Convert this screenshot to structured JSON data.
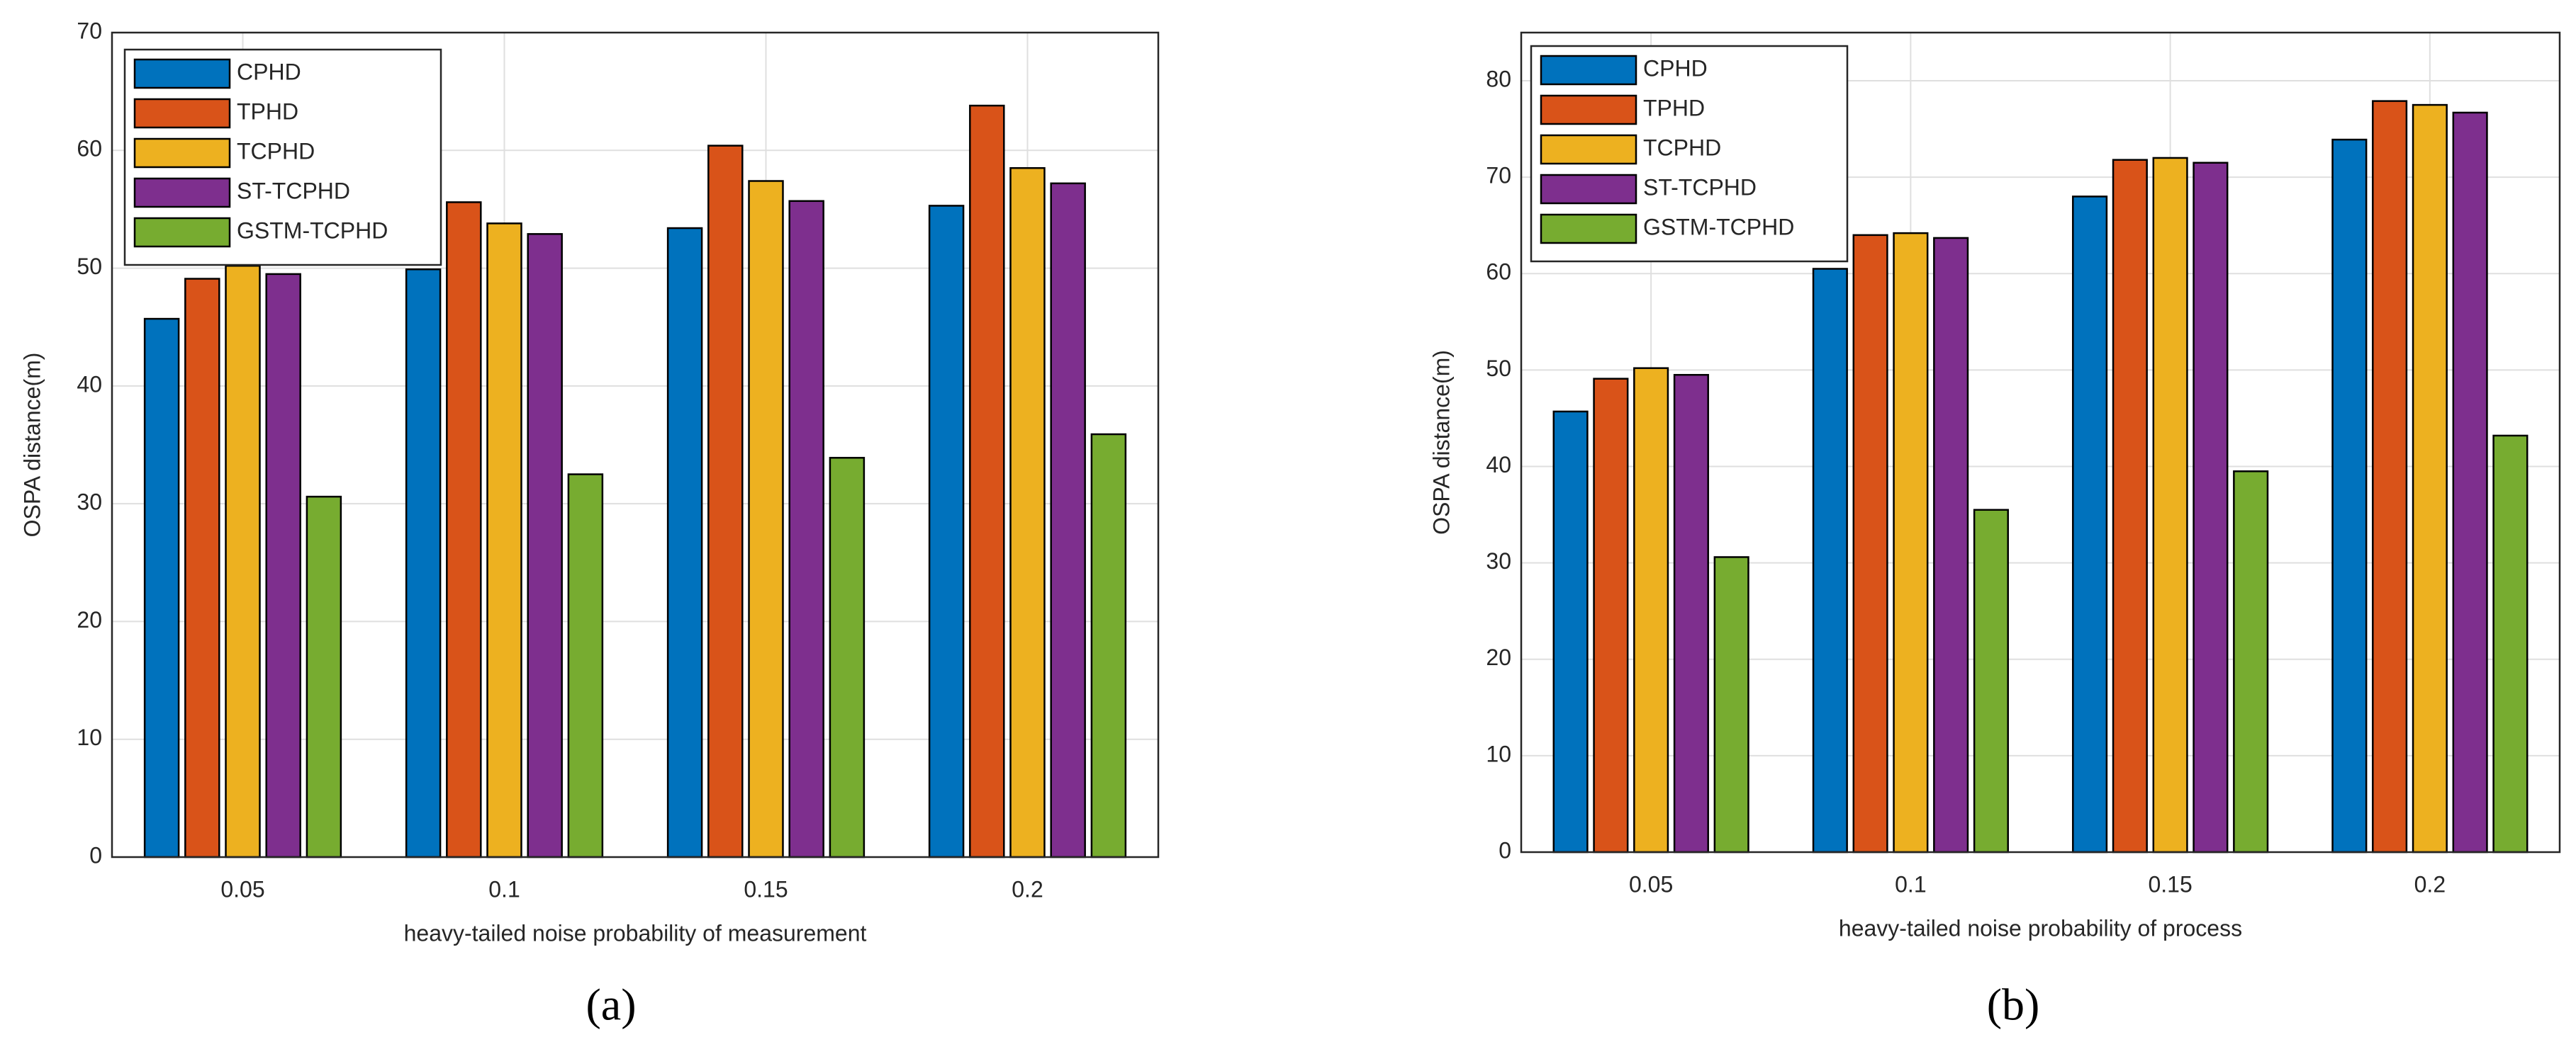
{
  "chart_data": [
    {
      "type": "bar",
      "caption": "(a)",
      "x_label": "heavy-tailed noise probability of measurement",
      "y_label": "OSPA distance(m)",
      "categories": [
        "0.05",
        "0.1",
        "0.15",
        "0.2"
      ],
      "series": [
        {
          "name": "CPHD",
          "color": "#0072bd",
          "values": [
            45.7,
            49.9,
            53.4,
            55.3
          ]
        },
        {
          "name": "TPHD",
          "color": "#d95319",
          "values": [
            49.1,
            55.6,
            60.4,
            63.8
          ]
        },
        {
          "name": "TCPHD",
          "color": "#edb120",
          "values": [
            50.2,
            53.8,
            57.4,
            58.5
          ]
        },
        {
          "name": "ST-TCPHD",
          "color": "#7e2f8e",
          "values": [
            49.5,
            52.9,
            55.7,
            57.2
          ]
        },
        {
          "name": "GSTM-TCPHD",
          "color": "#77ac30",
          "values": [
            30.6,
            32.5,
            33.9,
            35.9
          ]
        }
      ],
      "ylim": [
        0,
        70
      ],
      "yticks": [
        0,
        10,
        20,
        30,
        40,
        50,
        60,
        70
      ],
      "grid": true,
      "legend": "upper-left"
    },
    {
      "type": "bar",
      "caption": "(b)",
      "x_label": "heavy-tailed noise probability of process",
      "y_label": "OSPA distance(m)",
      "categories": [
        "0.05",
        "0.1",
        "0.15",
        "0.2"
      ],
      "series": [
        {
          "name": "CPHD",
          "color": "#0072bd",
          "values": [
            45.7,
            60.5,
            68.0,
            73.9
          ]
        },
        {
          "name": "TPHD",
          "color": "#d95319",
          "values": [
            49.1,
            64.0,
            71.8,
            77.9
          ]
        },
        {
          "name": "TCPHD",
          "color": "#edb120",
          "values": [
            50.2,
            64.2,
            72.0,
            77.5
          ]
        },
        {
          "name": "ST-TCPHD",
          "color": "#7e2f8e",
          "values": [
            49.5,
            63.7,
            71.5,
            76.7
          ]
        },
        {
          "name": "GSTM-TCPHD",
          "color": "#77ac30",
          "values": [
            30.6,
            35.5,
            39.5,
            43.2
          ]
        }
      ],
      "ylim": [
        0,
        85
      ],
      "yticks": [
        0,
        10,
        20,
        30,
        40,
        50,
        60,
        70,
        80
      ],
      "grid": true,
      "legend": "upper-left"
    }
  ]
}
